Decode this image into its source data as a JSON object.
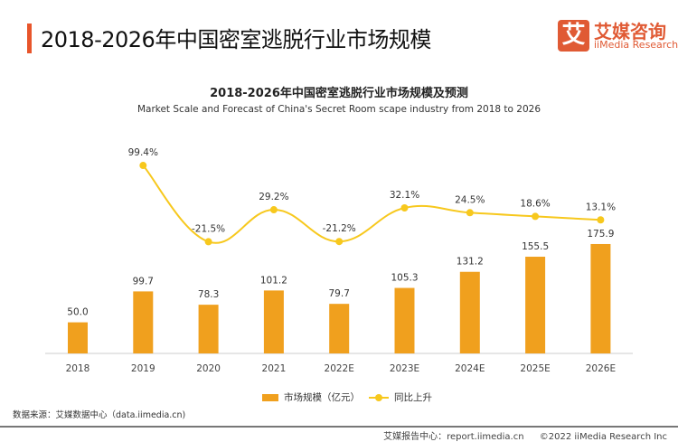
{
  "header": {
    "title": "2018-2026年中国密室逃脱行业市场规模",
    "logo_mark": "艾",
    "logo_cn": "艾媒咨询",
    "logo_en": "iiMedia Research"
  },
  "chart_data": {
    "type": "bar+line",
    "title": "2018-2026年中国密室逃脱行业市场规模及预测",
    "subtitle": "Market Scale and Forecast of China's Secret Room scape  industry from 2018 to 2026",
    "categories": [
      "2018",
      "2019",
      "2020",
      "2021",
      "2022E",
      "2023E",
      "2024E",
      "2025E",
      "2026E"
    ],
    "series": [
      {
        "name": "市场规模（亿元）",
        "type": "bar",
        "color": "#f0a01e",
        "values": [
          50.0,
          99.7,
          78.3,
          101.2,
          79.7,
          105.3,
          131.2,
          155.5,
          175.9
        ],
        "labels": [
          "50.0",
          "99.7",
          "78.3",
          "101.2",
          "79.7",
          "105.3",
          "131.2",
          "155.5",
          "175.9"
        ]
      },
      {
        "name": "同比上升",
        "type": "line",
        "color": "#f7c81d",
        "values": [
          null,
          99.4,
          -21.5,
          29.2,
          -21.2,
          32.1,
          24.5,
          18.6,
          13.1
        ],
        "labels": [
          "",
          "99.4%",
          "-21.5%",
          "29.2%",
          "-21.2%",
          "32.1%",
          "24.5%",
          "18.6%",
          "13.1%"
        ]
      }
    ],
    "legend": "bottom",
    "grid": false
  },
  "footer": {
    "source": "数据来源：艾媒数据中心（data.iimedia.cn)",
    "report": "艾媒报告中心：report.iimedia.cn",
    "copyright": "©2022  iiMedia Research  Inc"
  }
}
